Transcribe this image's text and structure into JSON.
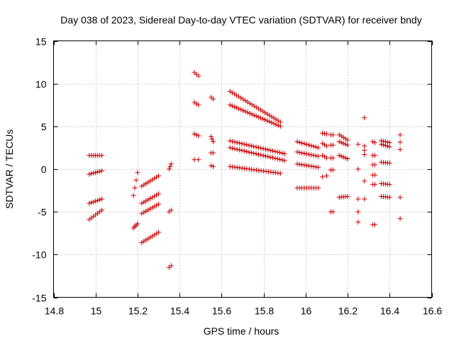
{
  "chart_data": {
    "type": "scatter",
    "title": "Day 038 of 2023, Sidereal Day-to-day VTEC variation (SDTVAR) for receiver bndy",
    "xlabel": "GPS time / hours",
    "ylabel": "SDTVAR / TECUs",
    "xlim": [
      14.8,
      16.6
    ],
    "ylim": [
      -15,
      15
    ],
    "grid": true,
    "marker": "+",
    "color": "#cc0000",
    "x_ticks": [
      14.8,
      15,
      15.2,
      15.4,
      15.6,
      15.8,
      16,
      16.2,
      16.4,
      16.6
    ],
    "x_tick_labels": [
      "14.8",
      "15",
      "15.2",
      "15.4",
      "15.6",
      "15.8",
      "16",
      "16.2",
      "16.4",
      "16.6"
    ],
    "y_ticks": [
      -15,
      -10,
      -5,
      0,
      5,
      10,
      15
    ],
    "y_tick_labels": [
      "-15",
      "-10",
      "-5",
      "0",
      "5",
      "10",
      "15"
    ],
    "tracks": [
      {
        "x0": 14.97,
        "x1": 15.03,
        "y0": 1.6,
        "y1": 1.6,
        "n": 7
      },
      {
        "x0": 14.97,
        "x1": 15.03,
        "y0": -0.6,
        "y1": -0.2,
        "n": 7
      },
      {
        "x0": 14.97,
        "x1": 15.03,
        "y0": -4.0,
        "y1": -3.5,
        "n": 7
      },
      {
        "x0": 14.97,
        "x1": 15.03,
        "y0": -5.9,
        "y1": -4.8,
        "n": 7
      },
      {
        "x0": 15.18,
        "x1": 15.2,
        "y0": -3.1,
        "y1": -0.4,
        "n": 4
      },
      {
        "x0": 15.18,
        "x1": 15.2,
        "y0": -6.9,
        "y1": -6.4,
        "n": 4
      },
      {
        "x0": 15.22,
        "x1": 15.3,
        "y0": -2.0,
        "y1": -0.8,
        "n": 9
      },
      {
        "x0": 15.22,
        "x1": 15.3,
        "y0": -4.0,
        "y1": -2.9,
        "n": 9
      },
      {
        "x0": 15.22,
        "x1": 15.3,
        "y0": -5.2,
        "y1": -4.1,
        "n": 9
      },
      {
        "x0": 15.22,
        "x1": 15.3,
        "y0": -8.6,
        "y1": -7.4,
        "n": 9
      },
      {
        "x0": 15.35,
        "x1": 15.36,
        "y0": -11.5,
        "y1": -11.3,
        "n": 2
      },
      {
        "x0": 15.35,
        "x1": 15.36,
        "y0": -5.0,
        "y1": -4.8,
        "n": 2
      },
      {
        "x0": 15.35,
        "x1": 15.36,
        "y0": 0.0,
        "y1": 0.6,
        "n": 3
      },
      {
        "x0": 15.47,
        "x1": 15.49,
        "y0": 11.3,
        "y1": 10.9,
        "n": 3
      },
      {
        "x0": 15.47,
        "x1": 15.49,
        "y0": 7.8,
        "y1": 7.5,
        "n": 3
      },
      {
        "x0": 15.47,
        "x1": 15.49,
        "y0": 4.1,
        "y1": 3.9,
        "n": 3
      },
      {
        "x0": 15.47,
        "x1": 15.49,
        "y0": 1.1,
        "y1": 1.1,
        "n": 2
      },
      {
        "x0": 15.55,
        "x1": 15.56,
        "y0": 8.4,
        "y1": 8.2,
        "n": 2
      },
      {
        "x0": 15.55,
        "x1": 15.56,
        "y0": 3.8,
        "y1": 3.2,
        "n": 3
      },
      {
        "x0": 15.55,
        "x1": 15.56,
        "y0": 1.9,
        "y1": 1.9,
        "n": 2
      },
      {
        "x0": 15.55,
        "x1": 15.56,
        "y0": 0.4,
        "y1": 0.3,
        "n": 2
      },
      {
        "x0": 15.64,
        "x1": 15.88,
        "y0": 9.1,
        "y1": 5.5,
        "n": 24
      },
      {
        "x0": 15.64,
        "x1": 15.88,
        "y0": 7.5,
        "y1": 5.0,
        "n": 24
      },
      {
        "x0": 15.64,
        "x1": 15.9,
        "y0": 3.3,
        "y1": 1.8,
        "n": 24
      },
      {
        "x0": 15.64,
        "x1": 15.9,
        "y0": 2.5,
        "y1": 1.0,
        "n": 24
      },
      {
        "x0": 15.64,
        "x1": 15.88,
        "y0": 0.3,
        "y1": -0.5,
        "n": 22
      },
      {
        "x0": 15.96,
        "x1": 16.06,
        "y0": 3.2,
        "y1": 2.5,
        "n": 10
      },
      {
        "x0": 15.96,
        "x1": 16.06,
        "y0": 2.0,
        "y1": 1.5,
        "n": 10
      },
      {
        "x0": 15.96,
        "x1": 16.06,
        "y0": 0.6,
        "y1": 0.2,
        "n": 10
      },
      {
        "x0": 15.96,
        "x1": 16.06,
        "y0": -2.2,
        "y1": -2.2,
        "n": 10
      },
      {
        "x0": 16.08,
        "x1": 16.1,
        "y0": 4.2,
        "y1": 4.1,
        "n": 3
      },
      {
        "x0": 16.08,
        "x1": 16.1,
        "y0": 3.0,
        "y1": 2.7,
        "n": 3
      },
      {
        "x0": 16.08,
        "x1": 16.1,
        "y0": 1.6,
        "y1": 1.3,
        "n": 3
      },
      {
        "x0": 16.08,
        "x1": 16.1,
        "y0": -0.9,
        "y1": -0.8,
        "n": 2
      },
      {
        "x0": 16.12,
        "x1": 16.13,
        "y0": 4.0,
        "y1": 4.0,
        "n": 2
      },
      {
        "x0": 16.12,
        "x1": 16.13,
        "y0": 2.8,
        "y1": 2.8,
        "n": 2
      },
      {
        "x0": 16.12,
        "x1": 16.13,
        "y0": 1.3,
        "y1": 1.3,
        "n": 2
      },
      {
        "x0": 16.12,
        "x1": 16.13,
        "y0": -0.1,
        "y1": -0.1,
        "n": 2
      },
      {
        "x0": 16.12,
        "x1": 16.13,
        "y0": -5.0,
        "y1": -5.0,
        "n": 2
      },
      {
        "x0": 16.16,
        "x1": 16.2,
        "y0": 4.0,
        "y1": 3.4,
        "n": 5
      },
      {
        "x0": 16.16,
        "x1": 16.2,
        "y0": 3.2,
        "y1": 2.8,
        "n": 5
      },
      {
        "x0": 16.16,
        "x1": 16.2,
        "y0": 1.6,
        "y1": 1.2,
        "n": 5
      },
      {
        "x0": 16.16,
        "x1": 16.2,
        "y0": -3.3,
        "y1": -3.2,
        "n": 5
      },
      {
        "x0": 16.25,
        "x1": 16.25,
        "y0": 2.9,
        "y1": 2.9,
        "n": 1
      },
      {
        "x0": 16.25,
        "x1": 16.25,
        "y0": 0.0,
        "y1": 0.0,
        "n": 1
      },
      {
        "x0": 16.25,
        "x1": 16.25,
        "y0": -3.5,
        "y1": -3.5,
        "n": 1
      },
      {
        "x0": 16.25,
        "x1": 16.25,
        "y0": -5.0,
        "y1": -5.0,
        "n": 1
      },
      {
        "x0": 16.25,
        "x1": 16.25,
        "y0": -6.2,
        "y1": -6.2,
        "n": 1
      },
      {
        "x0": 16.28,
        "x1": 16.28,
        "y0": 6.0,
        "y1": 6.0,
        "n": 1
      },
      {
        "x0": 16.28,
        "x1": 16.28,
        "y0": 2.7,
        "y1": 1.7,
        "n": 3
      },
      {
        "x0": 16.28,
        "x1": 16.28,
        "y0": -1.4,
        "y1": -1.4,
        "n": 1
      },
      {
        "x0": 16.28,
        "x1": 16.28,
        "y0": -3.5,
        "y1": -3.5,
        "n": 1
      },
      {
        "x0": 16.32,
        "x1": 16.33,
        "y0": 3.2,
        "y1": 3.1,
        "n": 2
      },
      {
        "x0": 16.32,
        "x1": 16.33,
        "y0": 1.6,
        "y1": 1.6,
        "n": 2
      },
      {
        "x0": 16.32,
        "x1": 16.33,
        "y0": 0.5,
        "y1": 0.5,
        "n": 2
      },
      {
        "x0": 16.32,
        "x1": 16.33,
        "y0": -0.7,
        "y1": -0.7,
        "n": 2
      },
      {
        "x0": 16.32,
        "x1": 16.33,
        "y0": -1.8,
        "y1": -1.8,
        "n": 2
      },
      {
        "x0": 16.32,
        "x1": 16.33,
        "y0": -6.5,
        "y1": -6.5,
        "n": 2
      },
      {
        "x0": 16.36,
        "x1": 16.4,
        "y0": 3.3,
        "y1": 3.1,
        "n": 5
      },
      {
        "x0": 16.36,
        "x1": 16.4,
        "y0": 2.9,
        "y1": 2.6,
        "n": 5
      },
      {
        "x0": 16.36,
        "x1": 16.4,
        "y0": 0.8,
        "y1": 0.7,
        "n": 5
      },
      {
        "x0": 16.36,
        "x1": 16.4,
        "y0": -1.7,
        "y1": -1.8,
        "n": 5
      },
      {
        "x0": 16.36,
        "x1": 16.4,
        "y0": -3.2,
        "y1": -3.3,
        "n": 5
      },
      {
        "x0": 16.45,
        "x1": 16.45,
        "y0": 4.0,
        "y1": 2.3,
        "n": 3
      },
      {
        "x0": 16.45,
        "x1": 16.45,
        "y0": -3.3,
        "y1": -3.3,
        "n": 1
      },
      {
        "x0": 16.45,
        "x1": 16.45,
        "y0": -5.8,
        "y1": -5.8,
        "n": 1
      }
    ]
  }
}
